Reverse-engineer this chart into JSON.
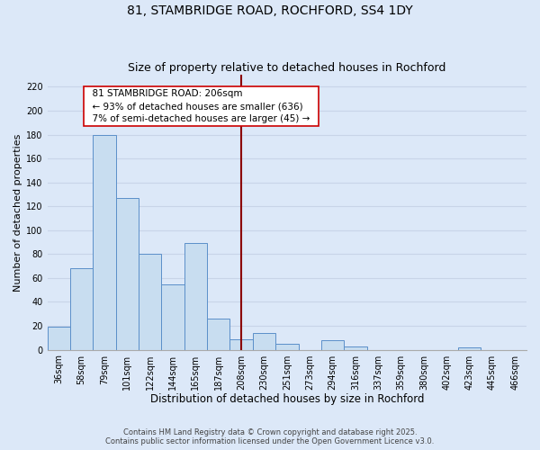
{
  "title": "81, STAMBRIDGE ROAD, ROCHFORD, SS4 1DY",
  "subtitle": "Size of property relative to detached houses in Rochford",
  "xlabel": "Distribution of detached houses by size in Rochford",
  "ylabel": "Number of detached properties",
  "categories": [
    "36sqm",
    "58sqm",
    "79sqm",
    "101sqm",
    "122sqm",
    "144sqm",
    "165sqm",
    "187sqm",
    "208sqm",
    "230sqm",
    "251sqm",
    "273sqm",
    "294sqm",
    "316sqm",
    "337sqm",
    "359sqm",
    "380sqm",
    "402sqm",
    "423sqm",
    "445sqm",
    "466sqm"
  ],
  "values": [
    19,
    68,
    180,
    127,
    80,
    55,
    89,
    26,
    9,
    14,
    5,
    0,
    8,
    3,
    0,
    0,
    0,
    0,
    2,
    0,
    0
  ],
  "bar_color": "#c8ddf0",
  "bar_edge_color": "#5b8fc9",
  "vline_x_index": 8,
  "vline_color": "#8b0000",
  "annotation_title": "81 STAMBRIDGE ROAD: 206sqm",
  "annotation_line1": "← 93% of detached houses are smaller (636)",
  "annotation_line2": "7% of semi-detached houses are larger (45) →",
  "annotation_box_facecolor": "#ffffff",
  "annotation_box_edgecolor": "#cc0000",
  "ylim": [
    0,
    230
  ],
  "yticks": [
    0,
    20,
    40,
    60,
    80,
    100,
    120,
    140,
    160,
    180,
    200,
    220
  ],
  "grid_color": "#c8d4e8",
  "background_color": "#dce8f8",
  "footer_line1": "Contains HM Land Registry data © Crown copyright and database right 2025.",
  "footer_line2": "Contains public sector information licensed under the Open Government Licence v3.0.",
  "title_fontsize": 10,
  "subtitle_fontsize": 9,
  "xlabel_fontsize": 8.5,
  "ylabel_fontsize": 8,
  "tick_fontsize": 7,
  "footer_fontsize": 6
}
